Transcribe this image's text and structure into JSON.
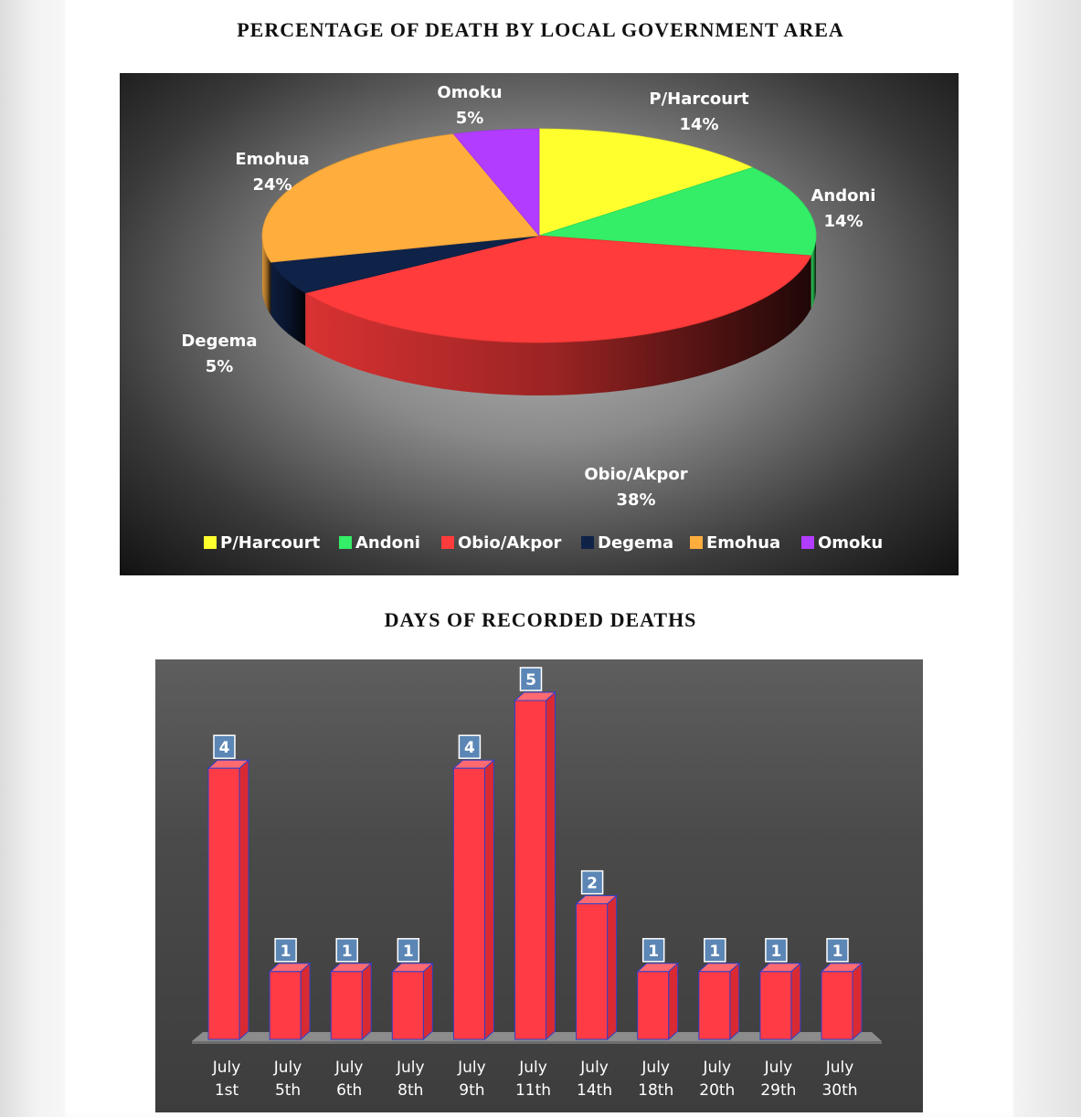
{
  "pie_title": "PERCENTAGE OF DEATH BY LOCAL GOVERNMENT AREA",
  "bar_title": "DAYS OF RECORDED DEATHS",
  "chart_data": [
    {
      "type": "pie",
      "title": "PERCENTAGE OF DEATH BY LOCAL GOVERNMENT AREA",
      "three_d": true,
      "legend": "bottom",
      "slices": [
        {
          "label": "P/Harcourt",
          "value": 14,
          "display": "14%",
          "color": "#ffff2e"
        },
        {
          "label": "Andoni",
          "value": 14,
          "display": "14%",
          "color": "#33ee66"
        },
        {
          "label": "Obio/Akpor",
          "value": 38,
          "display": "38%",
          "color": "#ff3b3b"
        },
        {
          "label": "Degema",
          "value": 5,
          "display": "5%",
          "color": "#0f2248"
        },
        {
          "label": "Emohua",
          "value": 24,
          "display": "24%",
          "color": "#ffad3d"
        },
        {
          "label": "Omoku",
          "value": 5,
          "display": "5%",
          "color": "#b23cff"
        }
      ]
    },
    {
      "type": "bar",
      "title": "DAYS OF RECORDED DEATHS",
      "three_d": true,
      "bar_color": "#ff3b46",
      "categories": [
        [
          "July",
          "1st"
        ],
        [
          "July",
          "5th"
        ],
        [
          "July",
          "6th"
        ],
        [
          "July",
          "8th"
        ],
        [
          "July",
          "9th"
        ],
        [
          "July",
          "11th"
        ],
        [
          "July",
          "14th"
        ],
        [
          "July",
          "18th"
        ],
        [
          "July",
          "20th"
        ],
        [
          "July",
          "29th"
        ],
        [
          "July",
          "30th"
        ]
      ],
      "values": [
        4,
        1,
        1,
        1,
        4,
        5,
        2,
        1,
        1,
        1,
        1
      ],
      "ylim": [
        0,
        5
      ]
    }
  ]
}
